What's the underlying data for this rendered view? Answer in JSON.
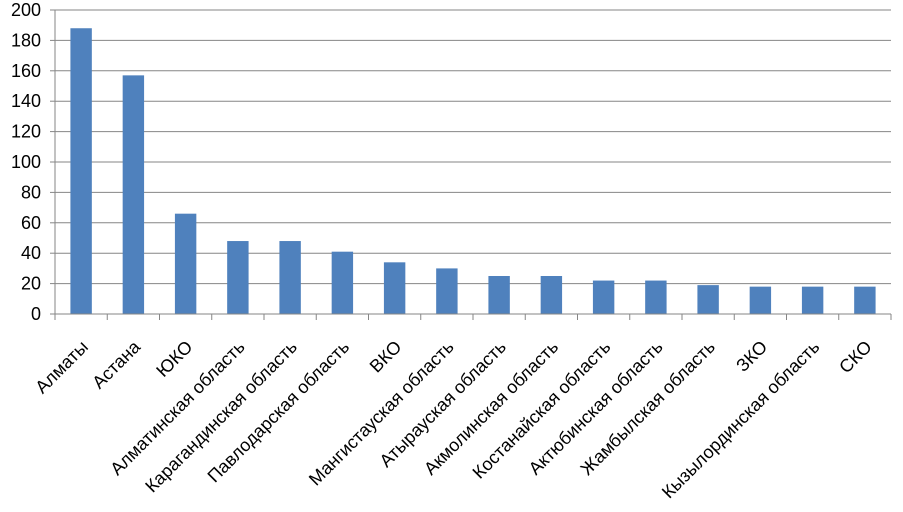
{
  "chart_data": {
    "type": "bar",
    "categories": [
      "Алматы",
      "Астана",
      "ЮКО",
      "Алматинская область",
      "Карагандинская  область",
      "Павлодарская область",
      "ВКО",
      "Мангистауская область",
      "Атырауская область",
      "Акмолинская область",
      "Костанайская область",
      "Актюбинская  область",
      "Жамбылская область",
      "ЗКО",
      "Кызылординская  область",
      "СКО"
    ],
    "values": [
      188,
      157,
      66,
      48,
      48,
      41,
      34,
      30,
      25,
      25,
      22,
      22,
      19,
      18,
      18,
      18
    ],
    "yticks": [
      "0",
      "20",
      "40",
      "60",
      "80",
      "100",
      "120",
      "140",
      "160",
      "180",
      "200"
    ],
    "ylim": [
      0,
      200
    ],
    "grid": true,
    "legend": "none",
    "bar_color": "#4f81bd",
    "grid_color": "#868686"
  }
}
